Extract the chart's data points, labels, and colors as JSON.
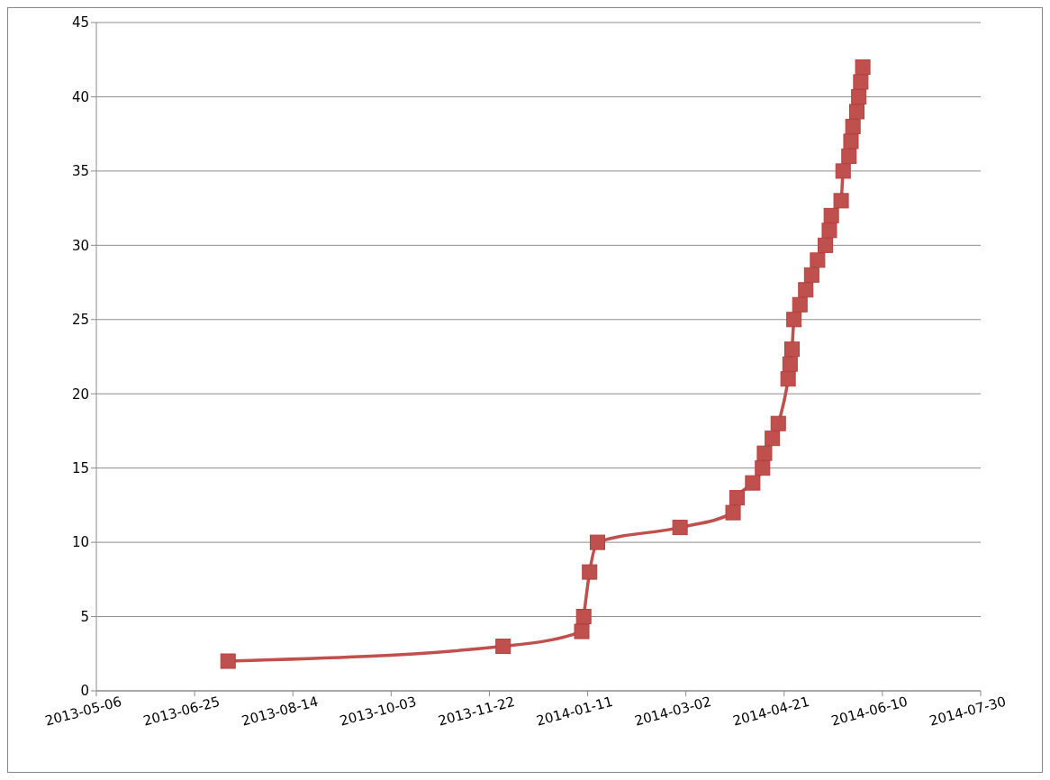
{
  "chart_data": {
    "type": "line",
    "x": [
      "2013-07-12",
      "2013-11-29",
      "2014-01-08",
      "2014-01-09",
      "2014-01-12",
      "2014-01-16",
      "2014-02-27",
      "2014-03-26",
      "2014-03-28",
      "2014-04-05",
      "2014-04-10",
      "2014-04-11",
      "2014-04-15",
      "2014-04-18",
      "2014-04-23",
      "2014-04-24",
      "2014-04-25",
      "2014-04-26",
      "2014-04-29",
      "2014-05-02",
      "2014-05-05",
      "2014-05-08",
      "2014-05-12",
      "2014-05-14",
      "2014-05-15",
      "2014-05-20",
      "2014-05-21",
      "2014-05-24",
      "2014-05-25",
      "2014-05-26",
      "2014-05-28",
      "2014-05-29",
      "2014-05-30",
      "2014-05-31"
    ],
    "series": [
      {
        "color": "#c0504d",
        "values": [
          2,
          3,
          4,
          5,
          8,
          10,
          11,
          12,
          13,
          14,
          15,
          16,
          17,
          18,
          21,
          22,
          23,
          25,
          26,
          27,
          28,
          29,
          30,
          31,
          32,
          33,
          35,
          36,
          37,
          38,
          39,
          40,
          41,
          42
        ]
      }
    ],
    "xlim": [
      "2013-05-06",
      "2014-07-30"
    ],
    "xticks": [
      "2013-05-06",
      "2013-06-25",
      "2013-08-14",
      "2013-10-03",
      "2013-11-22",
      "2014-01-11",
      "2014-03-02",
      "2014-04-21",
      "2014-06-10",
      "2014-07-30"
    ],
    "ylim": [
      0,
      45
    ],
    "yticks": [
      0,
      5,
      10,
      15,
      20,
      25,
      30,
      35,
      40,
      45
    ],
    "grid": "y",
    "marker": "square",
    "line_style": "solid"
  }
}
